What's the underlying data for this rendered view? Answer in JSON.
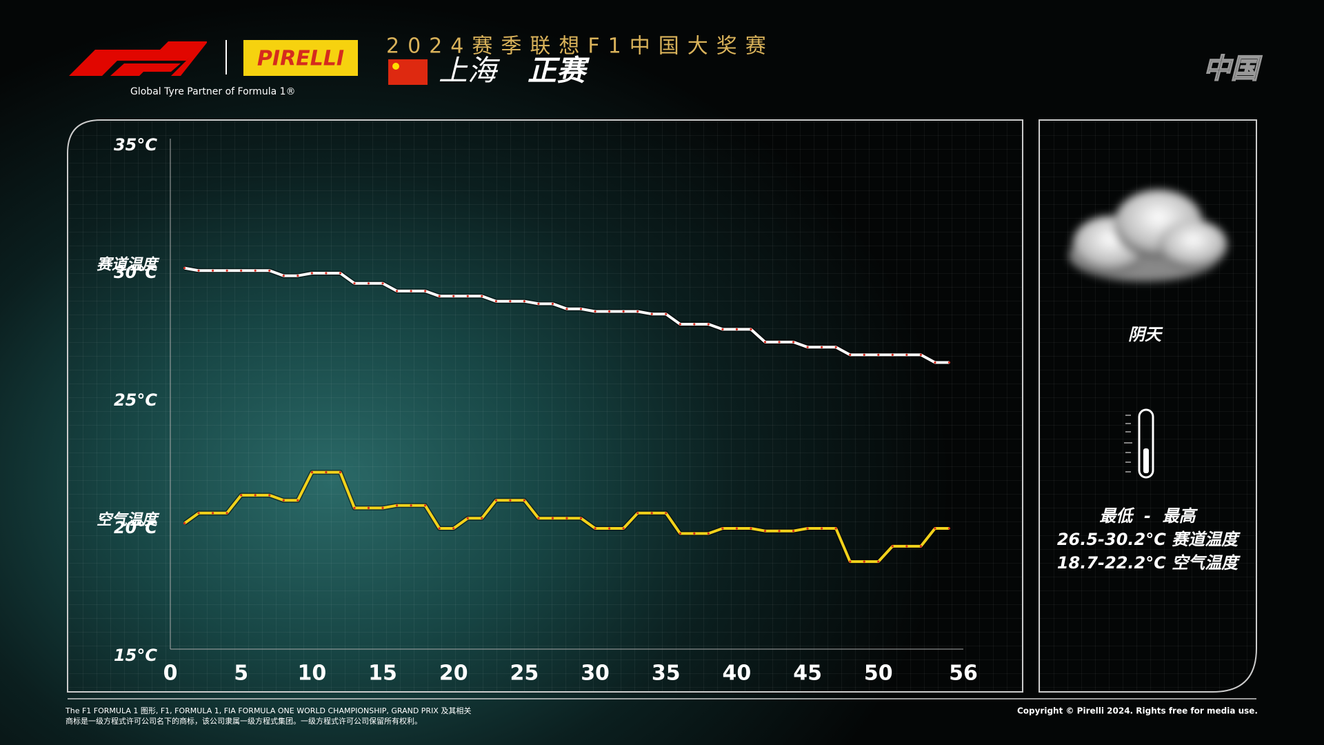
{
  "header": {
    "brand": "PIRELLI",
    "tagline": "Global Tyre Partner of Formula 1®",
    "title": "2024赛季联想F1中国大奖赛",
    "venue": "上海",
    "session": "正赛",
    "country": "中国"
  },
  "chart_data": {
    "type": "line",
    "x": [
      1,
      2,
      3,
      4,
      5,
      6,
      7,
      8,
      9,
      10,
      11,
      12,
      13,
      14,
      15,
      16,
      17,
      18,
      19,
      20,
      21,
      22,
      23,
      24,
      25,
      26,
      27,
      28,
      29,
      30,
      31,
      32,
      33,
      34,
      35,
      36,
      37,
      38,
      39,
      40,
      41,
      42,
      43,
      44,
      45,
      46,
      47,
      48,
      49,
      50,
      51,
      52,
      53,
      54,
      55
    ],
    "series": [
      {
        "name": "赛道温度",
        "color": "#ffffff",
        "values": [
          30.2,
          30.1,
          30.1,
          30.1,
          30.1,
          30.1,
          30.1,
          29.9,
          29.9,
          30.0,
          30.0,
          30.0,
          29.6,
          29.6,
          29.6,
          29.3,
          29.3,
          29.3,
          29.1,
          29.1,
          29.1,
          29.1,
          28.9,
          28.9,
          28.9,
          28.8,
          28.8,
          28.6,
          28.6,
          28.5,
          28.5,
          28.5,
          28.5,
          28.4,
          28.4,
          28.0,
          28.0,
          28.0,
          27.8,
          27.8,
          27.8,
          27.3,
          27.3,
          27.3,
          27.1,
          27.1,
          27.1,
          26.8,
          26.8,
          26.8,
          26.8,
          26.8,
          26.8,
          26.5,
          26.5
        ]
      },
      {
        "name": "空气温度",
        "color": "#f2d21b",
        "values": [
          20.2,
          20.6,
          20.6,
          20.6,
          21.3,
          21.3,
          21.3,
          21.1,
          21.1,
          22.2,
          22.2,
          22.2,
          20.8,
          20.8,
          20.8,
          20.9,
          20.9,
          20.9,
          20.0,
          20.0,
          20.4,
          20.4,
          21.1,
          21.1,
          21.1,
          20.4,
          20.4,
          20.4,
          20.4,
          20.0,
          20.0,
          20.0,
          20.6,
          20.6,
          20.6,
          19.8,
          19.8,
          19.8,
          20.0,
          20.0,
          20.0,
          19.9,
          19.9,
          19.9,
          20.0,
          20.0,
          20.0,
          18.7,
          18.7,
          18.7,
          19.3,
          19.3,
          19.3,
          20.0,
          20.0
        ]
      }
    ],
    "xlim": [
      0,
      56
    ],
    "xticks": [
      0,
      5,
      10,
      15,
      20,
      25,
      30,
      35,
      40,
      45,
      50,
      56
    ],
    "ylim": [
      15,
      35
    ],
    "yticks": [
      {
        "value": 15,
        "label": "15°C"
      },
      {
        "value": 20,
        "label": "20°C"
      },
      {
        "value": 25,
        "label": "25°C"
      },
      {
        "value": 30,
        "label": "30°C"
      },
      {
        "value": 35,
        "label": "35°C"
      }
    ]
  },
  "weather": {
    "condition": "阴天",
    "range_heading": "最低  -  最高",
    "track_range": "26.5-30.2°C 赛道温度",
    "air_range": "18.7-22.2°C 空气温度"
  },
  "footer": {
    "legal_1": "The F1 FORMULA 1 图形, F1, FORMULA 1, FIA FORMULA ONE WORLD CHAMPIONSHIP, GRAND PRIX 及其相关",
    "legal_2": "商标是一级方程式许可公司名下的商标，该公司隶属一级方程式集团。一级方程式许可公司保留所有权利。",
    "copyright": "Copyright © Pirelli 2024. Rights free for media use."
  }
}
